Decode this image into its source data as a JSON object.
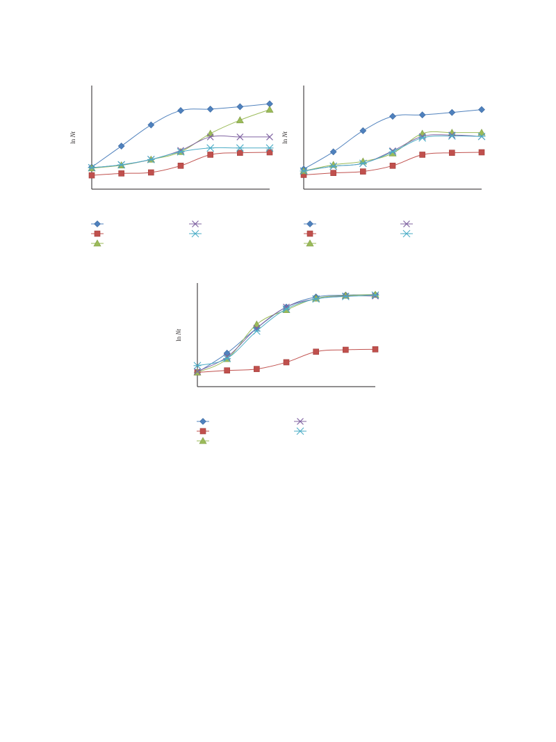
{
  "figure": {
    "panels_ylabel_prefix": "ln ",
    "panels_ylabel_var": "Nt"
  },
  "chart_data": [
    {
      "type": "line",
      "title": "",
      "xlabel": "",
      "ylabel": "ln Nt",
      "x": [
        0,
        1,
        2,
        3,
        4,
        5,
        6
      ],
      "xlim": [
        0,
        6
      ],
      "ylim": [
        0,
        100
      ],
      "grid": false,
      "legend": "bottom",
      "series": [
        {
          "marker": "diamond",
          "color": "#4f81bd",
          "values": [
            20,
            42,
            64,
            79,
            80.5,
            83,
            86
          ]
        },
        {
          "marker": "square",
          "color": "#c0504d",
          "values": [
            11.5,
            13.5,
            14.5,
            21.5,
            33,
            35,
            35.5
          ]
        },
        {
          "marker": "triangle",
          "color": "#9bbb59",
          "values": [
            19,
            22,
            28,
            36,
            55,
            69,
            80
          ]
        },
        {
          "marker": "x",
          "color": "#8064a2",
          "values": [
            19.5,
            22.5,
            28,
            37.5,
            51.5,
            51.5,
            51.5
          ]
        },
        {
          "marker": "asterisk",
          "color": "#4bacc6",
          "values": [
            19.5,
            22.5,
            28,
            36,
            40,
            40,
            40
          ]
        }
      ]
    },
    {
      "type": "line",
      "title": "",
      "xlabel": "",
      "ylabel": "ln Nt",
      "x": [
        0,
        1,
        2,
        3,
        4,
        5,
        6
      ],
      "xlim": [
        0,
        6
      ],
      "ylim": [
        0,
        100
      ],
      "grid": false,
      "legend": "bottom",
      "series": [
        {
          "marker": "diamond",
          "color": "#4f81bd",
          "values": [
            18,
            36,
            58,
            73,
            74.5,
            77,
            80
          ]
        },
        {
          "marker": "square",
          "color": "#c0504d",
          "values": [
            12,
            14,
            15.5,
            21.5,
            33,
            35,
            35.5
          ]
        },
        {
          "marker": "triangle",
          "color": "#9bbb59",
          "values": [
            16,
            22.5,
            26,
            34.5,
            55,
            56,
            56
          ]
        },
        {
          "marker": "x",
          "color": "#8064a2",
          "values": [
            16,
            21,
            24,
            37,
            52,
            53.5,
            52
          ]
        },
        {
          "marker": "asterisk",
          "color": "#4bacc6",
          "values": [
            16,
            21,
            24,
            36,
            50.5,
            52.5,
            52
          ]
        }
      ]
    },
    {
      "type": "line",
      "title": "",
      "xlabel": "",
      "ylabel": "ln Nt",
      "x": [
        0,
        1,
        2,
        3,
        4,
        5,
        6
      ],
      "xlim": [
        0,
        6
      ],
      "ylim": [
        0,
        100
      ],
      "grid": false,
      "legend": "bottom",
      "series": [
        {
          "marker": "diamond",
          "color": "#4f81bd",
          "values": [
            12,
            32,
            58,
            80,
            90.5,
            92.5,
            93
          ]
        },
        {
          "marker": "square",
          "color": "#c0504d",
          "values": [
            12,
            14,
            15.5,
            22.5,
            33.5,
            35.5,
            36
          ]
        },
        {
          "marker": "triangle",
          "color": "#9bbb59",
          "values": [
            12,
            26,
            62,
            77,
            89,
            92,
            93
          ]
        },
        {
          "marker": "x",
          "color": "#8064a2",
          "values": [
            13,
            28,
            58,
            80,
            88.5,
            91.5,
            91.5
          ]
        },
        {
          "marker": "asterisk",
          "color": "#4bacc6",
          "values": [
            19,
            26.5,
            55,
            78,
            88.5,
            91,
            92.5
          ]
        }
      ]
    }
  ]
}
